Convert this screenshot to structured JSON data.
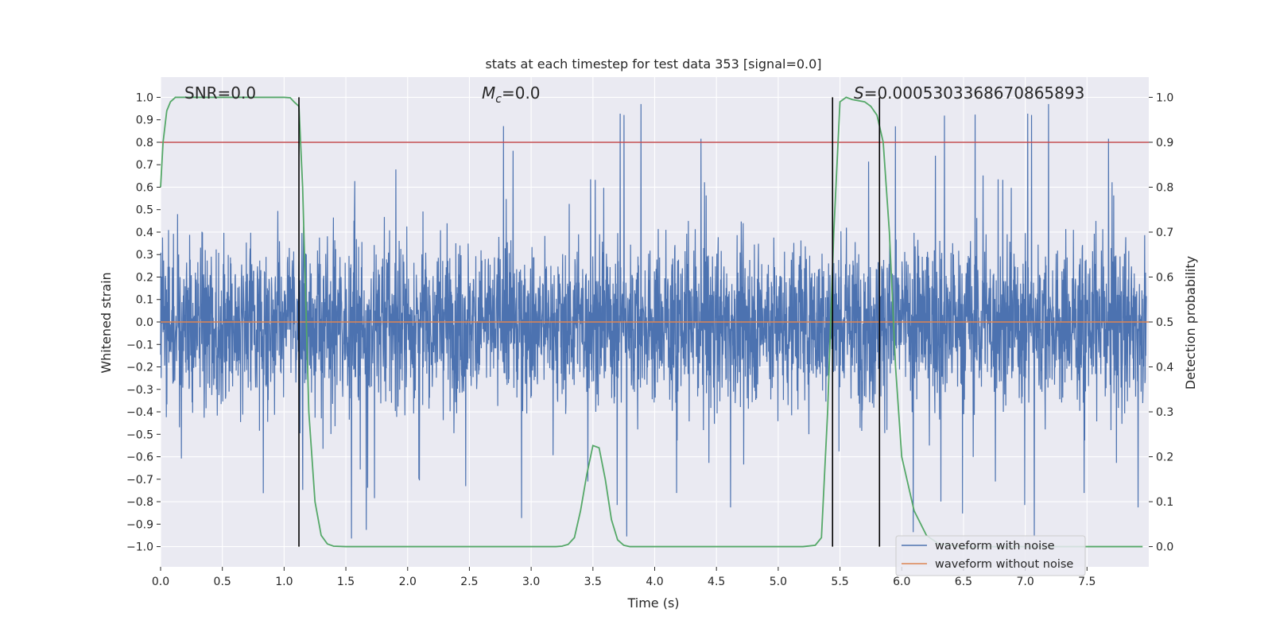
{
  "chart_data": {
    "type": "line",
    "title": "stats at each timestep for test data 353 [signal=0.0]",
    "xlabel": "Time (s)",
    "ylabel_left": "Whitened strain",
    "ylabel_right": "Detection probability",
    "xlim": [
      0.0,
      8.0
    ],
    "ylim_left": [
      -1.09,
      1.09
    ],
    "ylim_right": [
      -0.045,
      1.045
    ],
    "x_ticks": [
      "0.0",
      "0.5",
      "1.0",
      "1.5",
      "2.0",
      "2.5",
      "3.0",
      "3.5",
      "4.0",
      "4.5",
      "5.0",
      "5.5",
      "6.0",
      "6.5",
      "7.0",
      "7.5"
    ],
    "y_ticks_left": [
      "1.0",
      "0.9",
      "0.8",
      "0.7",
      "0.6",
      "0.5",
      "0.4",
      "0.3",
      "0.2",
      "0.1",
      "0.0",
      "−0.1",
      "−0.2",
      "−0.3",
      "−0.4",
      "−0.5",
      "−0.6",
      "−0.7",
      "−0.8",
      "−0.9",
      "−1.0"
    ],
    "y_ticks_right": [
      "1.0",
      "0.9",
      "0.8",
      "0.7",
      "0.6",
      "0.5",
      "0.4",
      "0.3",
      "0.2",
      "0.1",
      "0.0"
    ],
    "annotations": {
      "snr_label": "SNR=0.0",
      "mc_symbol": "M",
      "mc_sub": "c",
      "mc_value": "=0.0",
      "s_symbol": "S",
      "s_value": "=0.0005303368670865893"
    },
    "threshold": 0.9,
    "vertical_markers_s": [
      1.12,
      5.44,
      5.82
    ],
    "noise_envelope": {
      "typical_positive": 0.4,
      "typical_negative": -0.4,
      "max": 1.0,
      "min": -1.0
    },
    "series": [
      {
        "name": "waveform with noise",
        "color": "#4c72b0",
        "description_values": "dense noise between roughly -1.0 and 1.0"
      },
      {
        "name": "waveform without noise",
        "color": "#dd8452",
        "values_constant": 0.0
      },
      {
        "name": "Detection probability",
        "color": "#55a868",
        "axis": "right",
        "x": [
          0.0,
          0.02,
          0.05,
          0.08,
          0.12,
          0.2,
          0.4,
          0.6,
          0.8,
          1.0,
          1.05,
          1.08,
          1.12,
          1.15,
          1.2,
          1.25,
          1.3,
          1.35,
          1.4,
          1.5,
          2.0,
          2.5,
          3.0,
          3.2,
          3.25,
          3.3,
          3.35,
          3.4,
          3.45,
          3.5,
          3.55,
          3.6,
          3.65,
          3.7,
          3.75,
          3.8,
          4.0,
          4.5,
          5.0,
          5.2,
          5.3,
          5.35,
          5.4,
          5.45,
          5.5,
          5.55,
          5.6,
          5.7,
          5.75,
          5.8,
          5.85,
          5.9,
          5.95,
          6.0,
          6.1,
          6.2,
          6.3,
          6.5,
          7.0,
          7.5,
          7.95
        ],
        "y": [
          0.8,
          0.9,
          0.97,
          0.99,
          1.0,
          1.0,
          1.0,
          1.0,
          1.0,
          1.0,
          0.999,
          0.99,
          0.98,
          0.8,
          0.3,
          0.1,
          0.025,
          0.006,
          0.001,
          0.0,
          0.0,
          0.0,
          0.0,
          0.0,
          0.001,
          0.005,
          0.02,
          0.08,
          0.16,
          0.225,
          0.22,
          0.15,
          0.06,
          0.015,
          0.003,
          0.0,
          0.0,
          0.0,
          0.0,
          0.0,
          0.003,
          0.02,
          0.3,
          0.7,
          0.99,
          1.0,
          0.995,
          0.99,
          0.98,
          0.96,
          0.9,
          0.7,
          0.4,
          0.2,
          0.08,
          0.025,
          0.006,
          0.0,
          0.0,
          0.0,
          0.0
        ]
      }
    ],
    "legend": {
      "position": "lower-right",
      "entries": [
        {
          "label": "waveform with noise",
          "color": "#4c72b0"
        },
        {
          "label": "waveform without noise",
          "color": "#dd8452"
        }
      ]
    },
    "colors": {
      "background": "#eaeaf2",
      "grid": "#ffffff",
      "threshold": "#c44e52",
      "marker": "#000000"
    }
  }
}
